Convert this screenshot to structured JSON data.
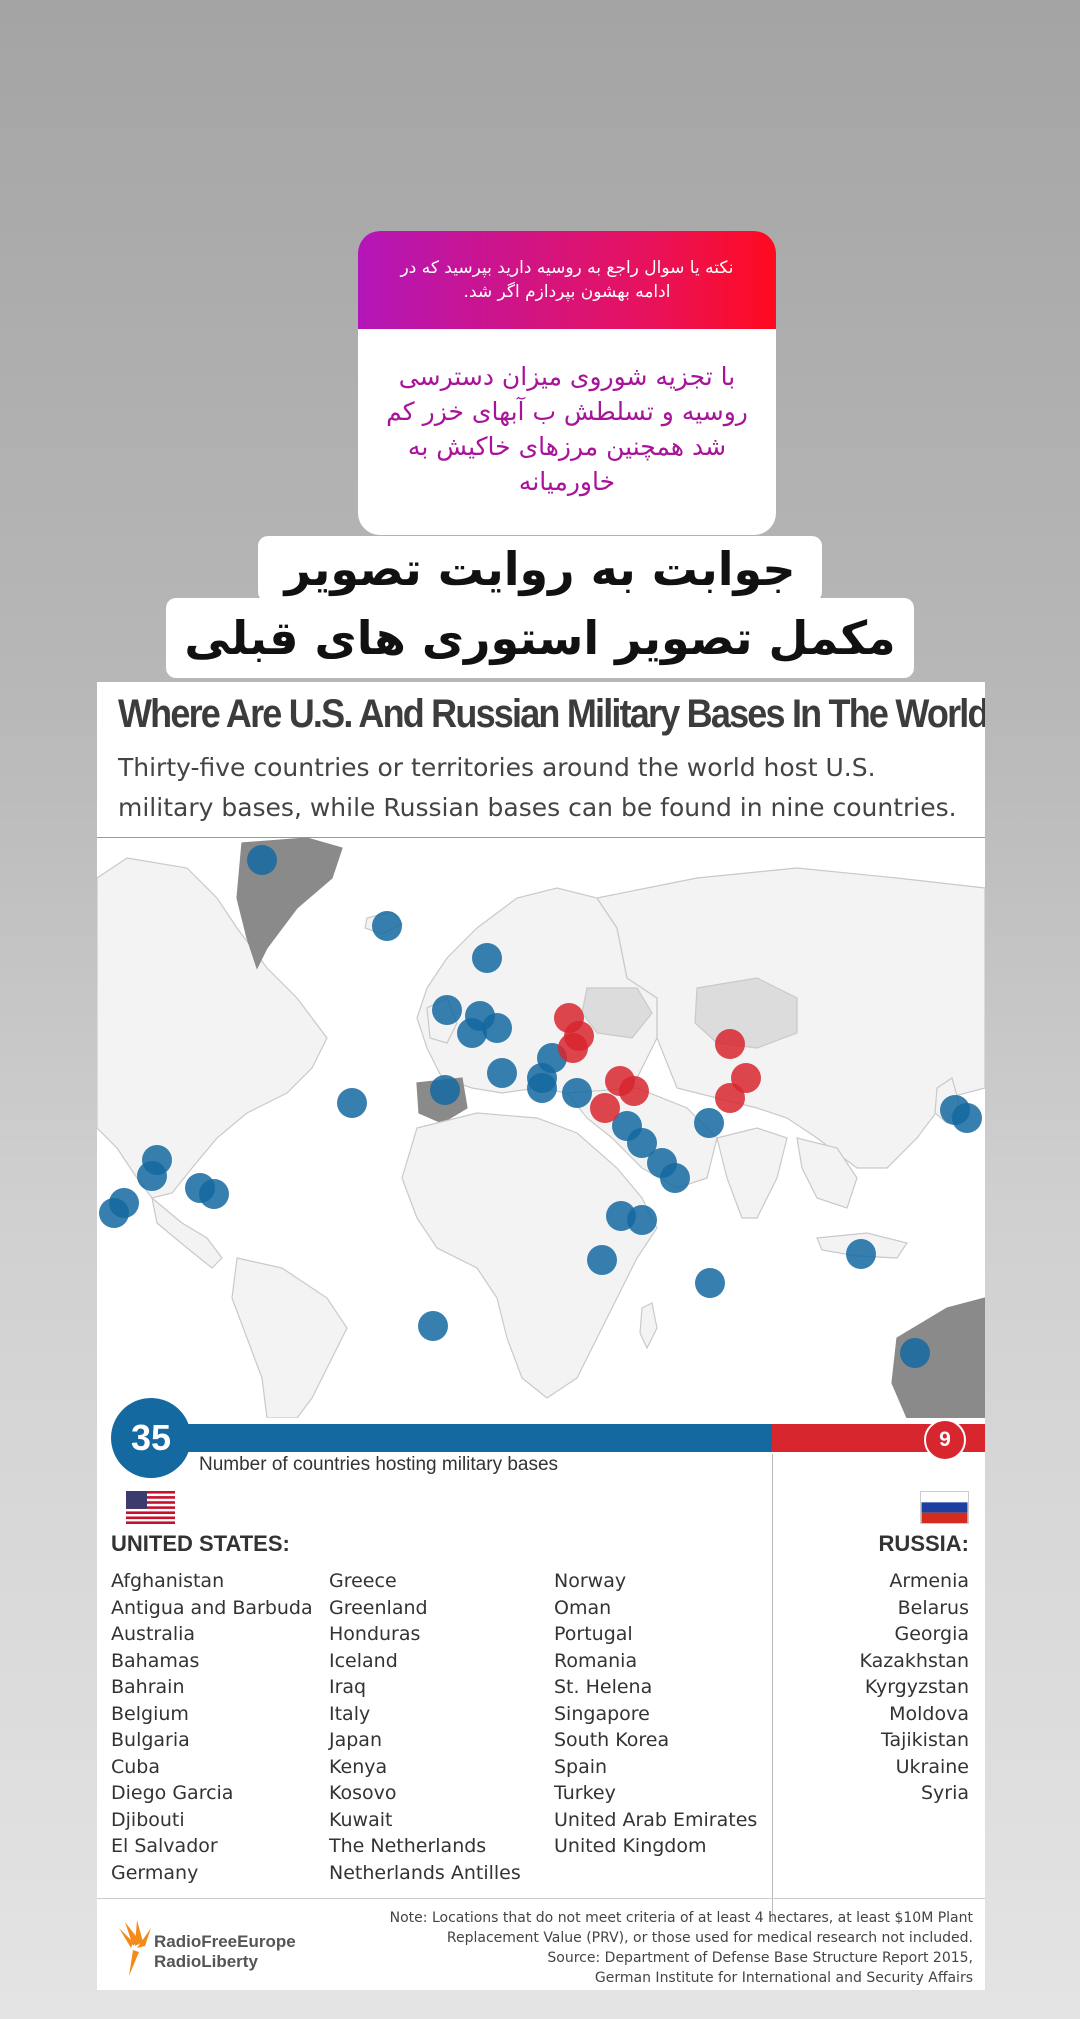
{
  "story": {
    "question_header": "نکته یا سوال راجع به روسیه دارید بپرسید که در ادامه بهشون بپردازم اگر شد.",
    "question_answer": "با تجزیه شوروی میزان دسترسی روسیه و تسلطش ب آبهای خزر کم شد همچنین مرزهای خاکیش به خاورمیانه",
    "caption_line1": "جوابت به روایت تصویر",
    "caption_line2": "مکمل تصویر استوری های قبلی"
  },
  "infographic": {
    "title": "Where Are U.S. And Russian Military Bases In The World?",
    "subtitle": "Thirty-five countries or territories around the world host U.S. military bases, while Russian bases can be found in nine countries.",
    "us_count": "35",
    "russia_count": "9",
    "count_label": "Number of countries hosting military bases",
    "us_heading": "UNITED STATES:",
    "russia_heading": "RUSSIA:",
    "us_col1": [
      "Afghanistan",
      "Antigua and Barbuda",
      "Australia",
      "Bahamas",
      "Bahrain",
      "Belgium",
      "Bulgaria",
      "Cuba",
      "Diego Garcia",
      "Djibouti",
      "El Salvador",
      "Germany"
    ],
    "us_col2": [
      "Greece",
      "Greenland",
      "Honduras",
      "Iceland",
      "Iraq",
      "Italy",
      "Japan",
      "Kenya",
      "Kosovo",
      "Kuwait",
      "The Netherlands",
      "Netherlands Antilles"
    ],
    "us_col3": [
      "Norway",
      "Oman",
      "Portugal",
      "Romania",
      "St. Helena",
      "Singapore",
      "South Korea",
      "Spain",
      "Turkey",
      "United Arab Emirates",
      "United Kingdom"
    ],
    "russia_list": [
      "Armenia",
      "Belarus",
      "Georgia",
      "Kazakhstan",
      "Kyrgyzstan",
      "Moldova",
      "Tajikistan",
      "Ukraine",
      "Syria"
    ],
    "logo_line1": "RadioFreeEurope",
    "logo_line2": "RadioLiberty",
    "note_line1": "Note: Locations that do not meet criteria of at least 4 hectares, at least $10M Plant",
    "note_line2": "Replacement Value (PRV), or those used for medical research not included.",
    "note_line3": "Source: Department of Defense Base Structure Report 2015,",
    "note_line4": "German Institute for International and Security Affairs"
  },
  "colors": {
    "us_blue": "#1469a0",
    "russia_red": "#d8262f"
  }
}
